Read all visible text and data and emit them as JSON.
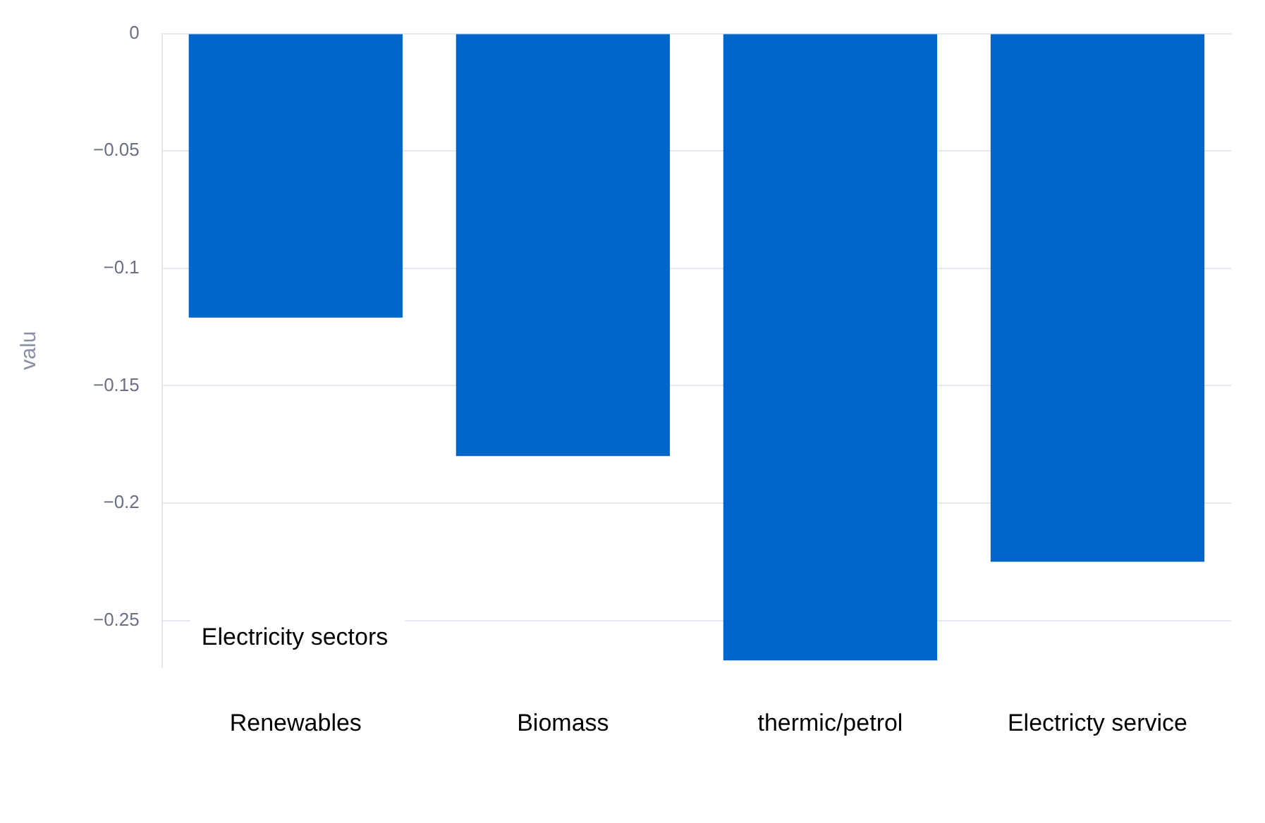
{
  "chart_data": {
    "type": "bar",
    "xlabel": "Electricity sectors",
    "ylabel": "valu",
    "categories": [
      "Renewables",
      "Biomass",
      "thermic/petrol",
      "Electricty service"
    ],
    "values": [
      -0.121,
      -0.18,
      -0.267,
      -0.225
    ],
    "color": "#0066cc",
    "ylim": [
      -0.27,
      0
    ],
    "yticks": [
      0,
      -0.05,
      -0.1,
      -0.15,
      -0.2,
      -0.25
    ],
    "grid": "y",
    "legend": false
  }
}
